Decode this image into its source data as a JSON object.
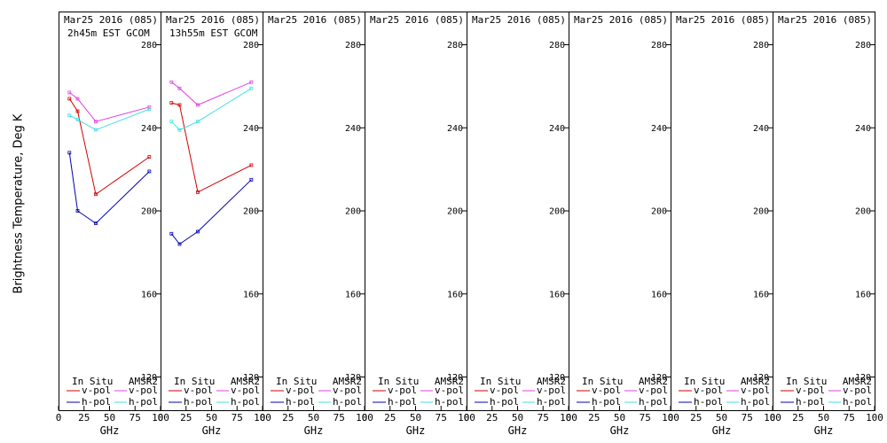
{
  "ylabel": "Brightness Temperature, Deg K",
  "colors": {
    "insitu_vpol": "#d00000",
    "insitu_hpol": "#0000b0",
    "amsr2_vpol": "#e040e0",
    "amsr2_hpol": "#40e0e0"
  },
  "legend": {
    "insitu_label": "In Situ",
    "amsr2_label": "AMSR2",
    "vpol": "v-pol",
    "hpol": "h-pol"
  },
  "chart_data": [
    {
      "type": "line",
      "title": "Mar25 2016 (085)",
      "subtitle": "2h45m EST GCOM",
      "xlabel": "GHz",
      "xlim": [
        0,
        100
      ],
      "ylim": [
        104,
        296
      ],
      "xticks": [
        0,
        25,
        50,
        75,
        100
      ],
      "yticks": [
        120,
        160,
        200,
        240,
        280
      ],
      "series": [
        {
          "name": "In Situ v-pol",
          "x": [
            10.7,
            18.7,
            36.5,
            89
          ],
          "y": [
            254,
            248,
            208,
            226
          ]
        },
        {
          "name": "In Situ h-pol",
          "x": [
            10.7,
            18.7,
            36.5,
            89
          ],
          "y": [
            228,
            200,
            194,
            219
          ]
        },
        {
          "name": "AMSR2 v-pol",
          "x": [
            10.7,
            18.7,
            36.5,
            89
          ],
          "y": [
            257,
            254,
            243,
            250
          ]
        },
        {
          "name": "AMSR2 h-pol",
          "x": [
            10.7,
            18.7,
            36.5,
            89
          ],
          "y": [
            246,
            244,
            239,
            249
          ]
        }
      ]
    },
    {
      "type": "line",
      "title": "Mar25 2016 (085)",
      "subtitle": "13h55m EST GCOM",
      "xlabel": "GHz",
      "xlim": [
        0,
        100
      ],
      "ylim": [
        104,
        296
      ],
      "xticks": [
        0,
        25,
        50,
        75,
        100
      ],
      "yticks": [
        120,
        160,
        200,
        240,
        280
      ],
      "series": [
        {
          "name": "In Situ v-pol",
          "x": [
            10.7,
            18.7,
            36.5,
            89
          ],
          "y": [
            252,
            251,
            209,
            222
          ]
        },
        {
          "name": "In Situ h-pol",
          "x": [
            10.7,
            18.7,
            36.5,
            89
          ],
          "y": [
            189,
            184,
            190,
            215
          ]
        },
        {
          "name": "AMSR2 v-pol",
          "x": [
            10.7,
            18.7,
            36.5,
            89
          ],
          "y": [
            262,
            259,
            251,
            262
          ]
        },
        {
          "name": "AMSR2 h-pol",
          "x": [
            10.7,
            18.7,
            36.5,
            89
          ],
          "y": [
            243,
            239,
            243,
            259
          ]
        }
      ]
    },
    {
      "type": "line",
      "title": "Mar25 2016 (085)",
      "subtitle": "",
      "xlabel": "GHz",
      "xlim": [
        0,
        100
      ],
      "ylim": [
        104,
        296
      ],
      "xticks": [
        0,
        25,
        50,
        75,
        100
      ],
      "yticks": [
        120,
        160,
        200,
        240,
        280
      ],
      "series": []
    },
    {
      "type": "line",
      "title": "Mar25 2016 (085)",
      "subtitle": "",
      "xlabel": "GHz",
      "xlim": [
        0,
        100
      ],
      "ylim": [
        104,
        296
      ],
      "xticks": [
        0,
        25,
        50,
        75,
        100
      ],
      "yticks": [
        120,
        160,
        200,
        240,
        280
      ],
      "series": []
    },
    {
      "type": "line",
      "title": "Mar25 2016 (085)",
      "subtitle": "",
      "xlabel": "GHz",
      "xlim": [
        0,
        100
      ],
      "ylim": [
        104,
        296
      ],
      "xticks": [
        0,
        25,
        50,
        75,
        100
      ],
      "yticks": [
        120,
        160,
        200,
        240,
        280
      ],
      "series": []
    },
    {
      "type": "line",
      "title": "Mar25 2016 (085)",
      "subtitle": "",
      "xlabel": "GHz",
      "xlim": [
        0,
        100
      ],
      "ylim": [
        104,
        296
      ],
      "xticks": [
        0,
        25,
        50,
        75,
        100
      ],
      "yticks": [
        120,
        160,
        200,
        240,
        280
      ],
      "series": []
    },
    {
      "type": "line",
      "title": "Mar25 2016 (085)",
      "subtitle": "",
      "xlabel": "GHz",
      "xlim": [
        0,
        100
      ],
      "ylim": [
        104,
        296
      ],
      "xticks": [
        0,
        25,
        50,
        75,
        100
      ],
      "yticks": [
        120,
        160,
        200,
        240,
        280
      ],
      "series": []
    },
    {
      "type": "line",
      "title": "Mar25 2016 (085)",
      "subtitle": "",
      "xlabel": "GHz",
      "xlim": [
        0,
        100
      ],
      "ylim": [
        104,
        296
      ],
      "xticks": [
        0,
        25,
        50,
        75,
        100
      ],
      "yticks": [
        120,
        160,
        200,
        240,
        280
      ],
      "series": []
    }
  ]
}
